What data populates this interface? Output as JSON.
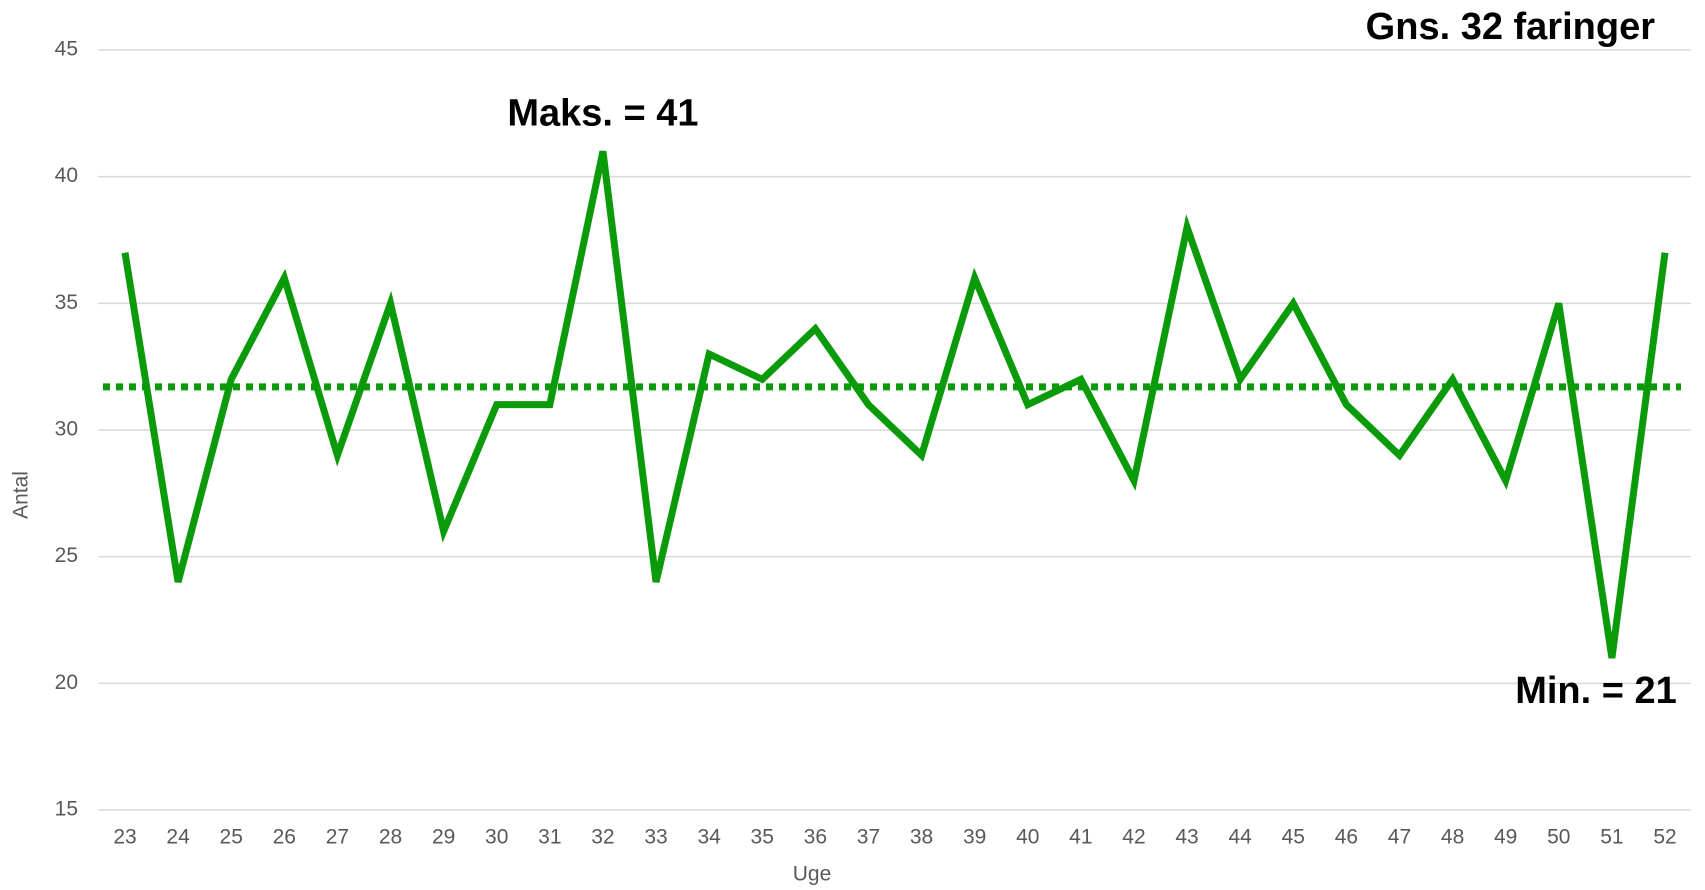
{
  "chart_data": {
    "type": "line",
    "title": "Gns. 32 faringer",
    "x_label": "Uge",
    "y_label": "Antal",
    "categories": [
      "23",
      "24",
      "25",
      "26",
      "27",
      "28",
      "29",
      "30",
      "31",
      "32",
      "33",
      "34",
      "35",
      "36",
      "37",
      "38",
      "39",
      "40",
      "41",
      "42",
      "43",
      "44",
      "45",
      "46",
      "47",
      "48",
      "49",
      "50",
      "51",
      "52"
    ],
    "series": [
      {
        "color": "#0a9a0a",
        "values": [
          37,
          24,
          32,
          36,
          29,
          35,
          26,
          31,
          31,
          41,
          24,
          33,
          32,
          34,
          31,
          29,
          36,
          31,
          32,
          28,
          38,
          32,
          35,
          31,
          29,
          32,
          28,
          35,
          21,
          37
        ]
      }
    ],
    "reference_line": {
      "value": 31.7,
      "color": "#0a9a0a",
      "style": "dotted"
    },
    "annotations": [
      {
        "text": "Maks. = 41",
        "category": 9
      },
      {
        "text": "Min. = 21",
        "category": 28
      }
    ],
    "ylim": [
      15,
      45
    ],
    "yticks": [
      15,
      20,
      25,
      30,
      35,
      40,
      45
    ],
    "grid": true
  }
}
